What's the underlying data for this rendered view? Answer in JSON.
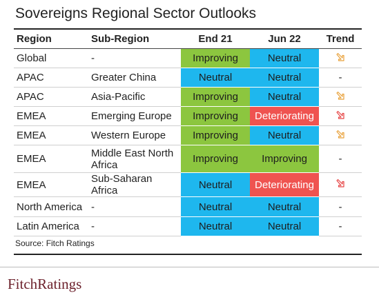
{
  "title": "Sovereigns Regional Sector Outlooks",
  "columns": [
    "Region",
    "Sub-Region",
    "End 21",
    "Jun 22",
    "Trend"
  ],
  "colors": {
    "Improving": "#8cc63f",
    "Neutral": "#1eb7ee",
    "Deteriorating": "#ef5350",
    "trend_arrow_down_right_orange": "#e8a13a",
    "trend_arrow_down_right_red": "#e64444"
  },
  "rows": [
    {
      "region": "Global",
      "subregion": "-",
      "end21": "Improving",
      "jun22": "Neutral",
      "trend": "down-right-orange"
    },
    {
      "region": "APAC",
      "subregion": "Greater China",
      "end21": "Neutral",
      "jun22": "Neutral",
      "trend": "-"
    },
    {
      "region": "APAC",
      "subregion": "Asia-Pacific",
      "end21": "Improving",
      "jun22": "Neutral",
      "trend": "down-right-orange"
    },
    {
      "region": "EMEA",
      "subregion": "Emerging Europe",
      "end21": "Improving",
      "jun22": "Deteriorating",
      "trend": "down-right-red"
    },
    {
      "region": "EMEA",
      "subregion": "Western Europe",
      "end21": "Improving",
      "jun22": "Neutral",
      "trend": "down-right-orange"
    },
    {
      "region": "EMEA",
      "subregion": "Middle East North Africa",
      "end21": "Improving",
      "jun22": "Improving",
      "trend": "-"
    },
    {
      "region": "EMEA",
      "subregion": "Sub-Saharan Africa",
      "end21": "Neutral",
      "jun22": "Deteriorating",
      "trend": "down-right-red"
    },
    {
      "region": "North America",
      "subregion": "-",
      "end21": "Neutral",
      "jun22": "Neutral",
      "trend": "-"
    },
    {
      "region": "Latin America",
      "subregion": "-",
      "end21": "Neutral",
      "jun22": "Neutral",
      "trend": "-"
    }
  ],
  "source": "Source: Fitch Ratings",
  "logo": "FitchRatings"
}
